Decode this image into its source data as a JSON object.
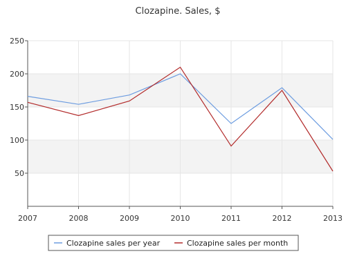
{
  "chart_data": {
    "type": "line",
    "title": "Clozapine. Sales, $",
    "xlabel": "",
    "ylabel": "",
    "categories": [
      "2007",
      "2008",
      "2009",
      "2010",
      "2011",
      "2012",
      "2013"
    ],
    "ylim": [
      0,
      250
    ],
    "yticks": [
      50,
      100,
      150,
      200,
      250
    ],
    "grid": "horizontal bands",
    "legend_position": "bottom",
    "series": [
      {
        "name": "Clozapine sales per year",
        "color": "#6c9ce0",
        "values": [
          166,
          154,
          168,
          200,
          125,
          179,
          101
        ]
      },
      {
        "name": "Clozapine sales per month",
        "color": "#b22a2a",
        "values": [
          157,
          137,
          159,
          210,
          91,
          175,
          53
        ]
      }
    ]
  }
}
